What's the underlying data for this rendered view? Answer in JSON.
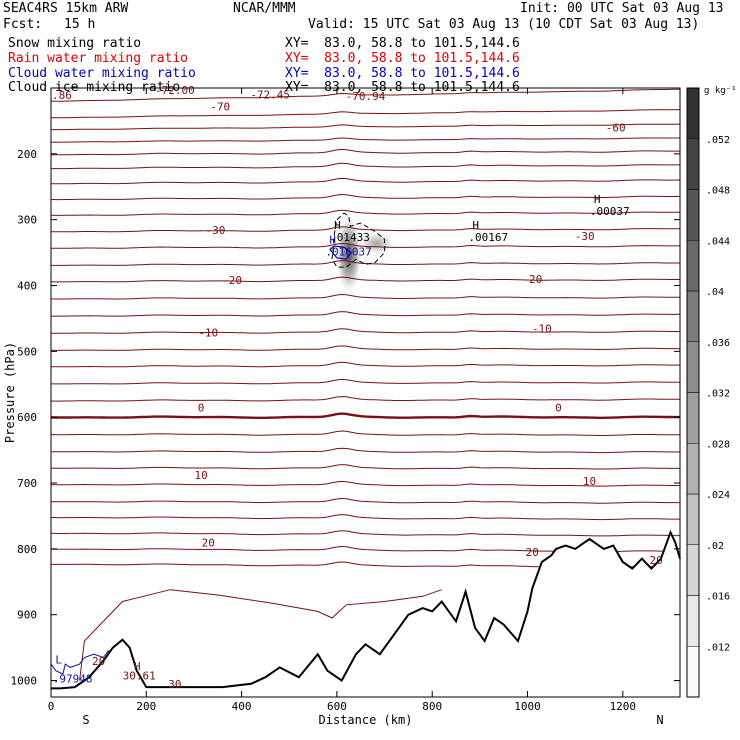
{
  "header": {
    "model": "SEAC4RS 15km ARW",
    "org": "NCAR/MMM",
    "init": "Init: 00 UTC Sat 03 Aug 13",
    "fcst_label": "Fcst:",
    "fcst_value": "15 h",
    "valid": "Valid: 15 UTC Sat 03 Aug 13 (10 CDT Sat 03 Aug 13)"
  },
  "fields": [
    {
      "name": "Snow mixing ratio",
      "xy": "XY=  83.0, 58.8 to 101.5,144.6",
      "color": "#000000"
    },
    {
      "name": "Rain water mixing ratio",
      "xy": "XY=  83.0, 58.8 to 101.5,144.6",
      "color": "#e00000"
    },
    {
      "name": "Cloud water mixing ratio",
      "xy": "XY=  83.0, 58.8 to 101.5,144.6",
      "color": "#0000cc"
    },
    {
      "name": "Cloud ice mixing ratio",
      "xy": "XY=  83.0, 58.8 to 101.5,144.6",
      "color": "#000000"
    }
  ],
  "colors": {
    "temperature": "#7a1010",
    "terrain": "#000000",
    "cloud_water": "#1010a0",
    "text": "#000000"
  },
  "chart_data": {
    "type": "line",
    "xlabel": "Distance (km)",
    "ylabel": "Pressure (hPa)",
    "xlim": [
      0,
      1320
    ],
    "ylim": [
      100,
      1025
    ],
    "x_ticks": [
      0,
      200,
      400,
      600,
      800,
      1000,
      1200
    ],
    "y_ticks": [
      200,
      300,
      400,
      500,
      600,
      700,
      800,
      900,
      1000
    ],
    "y_tick_labels": [
      "200",
      "300",
      "400",
      "500",
      "600",
      "700",
      "800",
      "900",
      "1000"
    ],
    "x_tick_labels": [
      "0",
      "200",
      "400",
      "600",
      "800",
      "1000",
      "1200"
    ],
    "end_labels": {
      "left": "S",
      "right": "N"
    },
    "colorbar": {
      "units": "g kg⁻¹",
      "ticks": [
        ".052",
        ".048",
        ".044",
        ".04",
        ".036",
        ".032",
        ".028",
        ".024",
        ".02",
        ".016",
        ".012"
      ],
      "tick_values": [
        0.052,
        0.048,
        0.044,
        0.04,
        0.036,
        0.032,
        0.028,
        0.024,
        0.02,
        0.016,
        0.012
      ],
      "range": [
        0.008,
        0.056
      ]
    },
    "isotherms_base_pressure_left": [
      120,
      145,
      163,
      182,
      201,
      222,
      245,
      269,
      293,
      318,
      343,
      369,
      394,
      420,
      446,
      472,
      498,
      523,
      549,
      575,
      600,
      626,
      652,
      677,
      702,
      728,
      752,
      776,
      800,
      823
    ],
    "isotherms_rise_right": [
      18,
      12,
      8,
      6,
      5,
      5,
      5,
      4,
      4,
      4,
      3,
      3,
      3,
      2,
      2,
      2,
      2,
      2,
      2,
      2,
      0,
      -1,
      -1,
      -1,
      -2,
      -2,
      -3,
      -4,
      -4,
      -5
    ],
    "bold_isotherm_index": 20,
    "contour_labels": [
      {
        "text": "-70",
        "x": 355,
        "p": 128
      },
      {
        "text": "-72.45",
        "x": 460,
        "p": 110
      },
      {
        "text": "-70.94",
        "x": 660,
        "p": 112
      },
      {
        "text": "-60",
        "x": 1185,
        "p": 160
      },
      {
        "text": "-30",
        "x": 345,
        "p": 316
      },
      {
        "text": "-30",
        "x": 1120,
        "p": 325
      },
      {
        "text": "-20",
        "x": 380,
        "p": 392
      },
      {
        "text": "-20",
        "x": 1010,
        "p": 390
      },
      {
        "text": "-10",
        "x": 330,
        "p": 471
      },
      {
        "text": "-10",
        "x": 1030,
        "p": 465
      },
      {
        "text": "0",
        "x": 315,
        "p": 585
      },
      {
        "text": "0",
        "x": 1065,
        "p": 585
      },
      {
        "text": "10",
        "x": 315,
        "p": 688
      },
      {
        "text": "10",
        "x": 1130,
        "p": 697
      },
      {
        "text": "20",
        "x": 330,
        "p": 790
      },
      {
        "text": "20",
        "x": 1010,
        "p": 805
      },
      {
        "text": "20",
        "x": 100,
        "p": 970
      },
      {
        "text": "20",
        "x": 1270,
        "p": 817
      },
      {
        "text": "30",
        "x": 260,
        "p": 1005
      },
      {
        "text": "30.61",
        "x": 185,
        "p": 992
      }
    ],
    "extrema": [
      {
        "symbol": "H",
        "value": ".00037",
        "x": 1135,
        "p": 278
      },
      {
        "symbol": "H",
        "value": ".01433",
        "x": 590,
        "p": 317
      },
      {
        "symbol": "H",
        "value": ".00167",
        "x": 880,
        "p": 317
      },
      {
        "symbol": "H",
        "value": ".016037",
        "x": 580,
        "p": 339
      },
      {
        "symbol": "H",
        "value": "",
        "x": 170,
        "p": 987
      },
      {
        "symbol": "L",
        "value": "",
        "x": 5,
        "p": 977
      },
      {
        "symbol": "",
        "value": ".97948",
        "x": 8,
        "p": 988
      }
    ],
    "top_clipped_labels": [
      ".86",
      "-72.00"
    ],
    "terrain": {
      "x": [
        0,
        20,
        50,
        80,
        110,
        130,
        150,
        165,
        180,
        200,
        240,
        300,
        360,
        420,
        450,
        480,
        520,
        560,
        580,
        610,
        640,
        660,
        690,
        720,
        750,
        780,
        800,
        820,
        850,
        870,
        890,
        910,
        930,
        950,
        980,
        1000,
        1010,
        1030,
        1050,
        1060,
        1080,
        1100,
        1130,
        1160,
        1180,
        1200,
        1220,
        1240,
        1260,
        1280,
        1300,
        1310,
        1320
      ],
      "p": [
        1012,
        1012,
        1010,
        995,
        970,
        950,
        938,
        950,
        985,
        1010,
        1010,
        1010,
        1010,
        1005,
        995,
        980,
        995,
        960,
        985,
        1000,
        960,
        945,
        960,
        930,
        900,
        890,
        895,
        880,
        910,
        865,
        920,
        940,
        905,
        915,
        940,
        895,
        860,
        820,
        810,
        800,
        795,
        800,
        785,
        800,
        795,
        820,
        830,
        815,
        830,
        815,
        775,
        790,
        815
      ]
    },
    "cloud": {
      "x_center": 625,
      "p_center": 350,
      "core_value": 0.05
    }
  }
}
